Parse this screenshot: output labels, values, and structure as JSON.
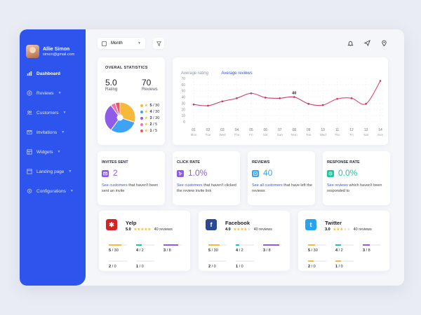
{
  "user": {
    "name": "Allie Simon",
    "email": "simon@gmail.com"
  },
  "nav": [
    {
      "label": "Dashboard",
      "icon": "bar-chart-icon",
      "active": true,
      "chevron": false
    },
    {
      "label": "Reviews",
      "icon": "plus-circle-icon",
      "chevron": true
    },
    {
      "label": "Customers",
      "icon": "users-icon",
      "chevron": true
    },
    {
      "label": "Invitations",
      "icon": "mail-icon",
      "chevron": true
    },
    {
      "label": "Widgets",
      "icon": "widgets-icon",
      "chevron": true
    },
    {
      "label": "Landing page",
      "icon": "page-icon",
      "chevron": true
    },
    {
      "label": "Configurations",
      "icon": "gear-icon",
      "chevron": true
    }
  ],
  "toolbar": {
    "period": "Month"
  },
  "overall": {
    "title": "OVERAL STATISTICS",
    "rating_value": "5.0",
    "rating_label": "Rating",
    "reviews_value": "70",
    "reviews_label": "Reviews",
    "legend": [
      {
        "value": "5",
        "total": "30",
        "color": "#f6b93b"
      },
      {
        "value": "4",
        "total": "30",
        "color": "#3ea2f5"
      },
      {
        "value": "3",
        "total": "30",
        "color": "#8e5ce8"
      },
      {
        "value": "2",
        "total": "5",
        "color": "#f56db6"
      },
      {
        "value": "1",
        "total": "5",
        "color": "#f25555"
      }
    ]
  },
  "chart": {
    "tab_inactive": "Average rating",
    "tab_active": "Average reviews",
    "annotation": "40",
    "chart_data": {
      "type": "line",
      "categories": [
        "01\nMon",
        "02\nTue",
        "03\nWed",
        "04\nThu",
        "05\nFri",
        "06\nSat",
        "07\nSun",
        "08\nMon",
        "09\nTue",
        "10\nWed",
        "11\nThu",
        "12\nFri",
        "13\nSat",
        "14\nSun"
      ],
      "x_days": [
        "01",
        "02",
        "03",
        "04",
        "05",
        "06",
        "07",
        "08",
        "09",
        "10",
        "11",
        "12",
        "13",
        "14"
      ],
      "x_weekdays": [
        "Mon",
        "Tue",
        "Wed",
        "Thu",
        "Fri",
        "Sat",
        "Sun",
        "Mon",
        "Tue",
        "Wed",
        "Thu",
        "Fri",
        "Sat",
        "Sun"
      ],
      "values": [
        28,
        26,
        33,
        38,
        46,
        39,
        38,
        40,
        29,
        27,
        37,
        38,
        29,
        66
      ],
      "yticks": [
        0,
        10,
        20,
        30,
        40,
        50,
        60,
        70
      ],
      "ylim": [
        0,
        70
      ]
    }
  },
  "mini": [
    {
      "title": "INVITES SENT",
      "value": "2",
      "color": "#8e5ce8",
      "icon": "mail-icon",
      "link": "See customers",
      "desc": " that haven't been sent an invite"
    },
    {
      "title": "CLICK RATE",
      "value": "1.0%",
      "color": "#8e5ce8",
      "icon": "cursor-icon",
      "link": "See customers",
      "desc": " that haven't clicked the review invite link"
    },
    {
      "title": "REVIEWS",
      "value": "40",
      "color": "#3ea2f5",
      "icon": "review-icon",
      "link": "See all customers",
      "desc": " that have left the reviews"
    },
    {
      "title": "RESPONSE RATE",
      "value": "0.0%",
      "color": "#23c4a3",
      "icon": "response-icon",
      "link": "See reviews",
      "desc": " which haven't been responded to"
    }
  ],
  "reviews": [
    {
      "brand": "Yelp",
      "rating": "5.0",
      "stars": 5,
      "count": "40 reviews",
      "color": "#d32323",
      "glyph": "✱",
      "metrics": [
        {
          "v": "5",
          "t": "30",
          "fill": 0.7,
          "color": "#f6b93b"
        },
        {
          "v": "4",
          "t": "2",
          "fill": 0.3,
          "color": "#23c4a3"
        },
        {
          "v": "3",
          "t": "8",
          "fill": 0.8,
          "color": "#8e5ce8"
        },
        {
          "v": "2",
          "t": "0",
          "fill": 0.5,
          "color": "#eef0f4"
        },
        {
          "v": "1",
          "t": "0",
          "fill": 0.5,
          "color": "#eef0f4"
        }
      ]
    },
    {
      "brand": "Facebook",
      "rating": "4.0",
      "stars": 4,
      "count": "40 reviews",
      "color": "#2c4a8e",
      "glyph": "f",
      "metrics": [
        {
          "v": "5",
          "t": "30",
          "fill": 0.6,
          "color": "#f6b93b"
        },
        {
          "v": "4",
          "t": "2",
          "fill": 0.2,
          "color": "#23c4a3"
        },
        {
          "v": "3",
          "t": "8",
          "fill": 0.9,
          "color": "#8e5ce8"
        },
        {
          "v": "2",
          "t": "0",
          "fill": 0.5,
          "color": "#eef0f4"
        },
        {
          "v": "1",
          "t": "0",
          "fill": 0.5,
          "color": "#eef0f4"
        }
      ]
    },
    {
      "brand": "Twitter",
      "rating": "3.0",
      "stars": 3,
      "count": "40 reviews",
      "color": "#2aa3ef",
      "glyph": "t",
      "metrics": [
        {
          "v": "5",
          "t": "30",
          "fill": 0.4,
          "color": "#f6b93b"
        },
        {
          "v": "4",
          "t": "2",
          "fill": 0.3,
          "color": "#23c4a3"
        },
        {
          "v": "3",
          "t": "8",
          "fill": 0.4,
          "color": "#8e5ce8"
        },
        {
          "v": "2",
          "t": "0",
          "fill": 0.3,
          "color": "#f6b93b"
        },
        {
          "v": "1",
          "t": "0",
          "fill": 0.3,
          "color": "#f6b93b"
        }
      ]
    }
  ]
}
